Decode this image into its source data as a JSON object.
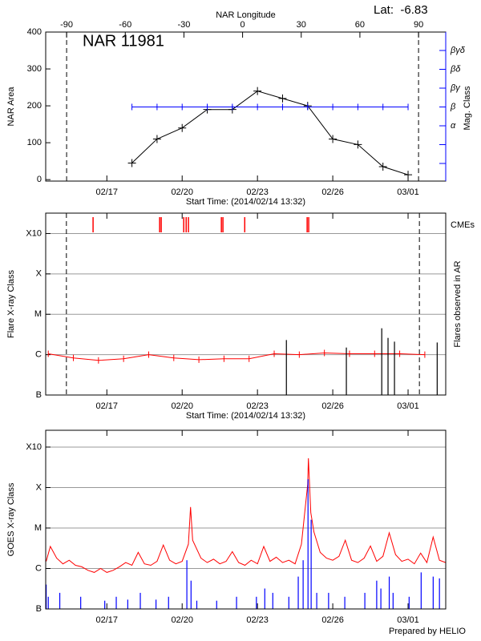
{
  "chart_data": [
    {
      "type": "line",
      "title": "NAR 11981",
      "annotation": "Lat:  -6.83",
      "x2label": "NAR Longitude",
      "x2lim": [
        -100.7,
        103.9
      ],
      "x2ticks": [
        -90,
        -60,
        -30,
        0,
        30,
        60,
        90
      ],
      "limb_longitudes": [
        -90,
        90
      ],
      "ylabel": "NAR Area",
      "ylim": [
        -4,
        400
      ],
      "yticks": [
        0,
        100,
        200,
        300,
        400
      ],
      "y2label": "Mag. Class",
      "y2categories": [
        null,
        null,
        "α",
        "β",
        "βγ",
        "βδ",
        "βγδ"
      ],
      "y2color": "#0000ff",
      "xlabel": "Start Time: (2014/02/14 13:32)",
      "xlim": [
        "2014/02/14 13:32",
        "2014/03/02 12:00"
      ],
      "xticks": [
        {
          "value": "2014/02/17 00:00",
          "label": "02/17"
        },
        {
          "value": "2014/02/20 00:00",
          "label": "02/20"
        },
        {
          "value": "2014/02/23 00:00",
          "label": "02/23"
        },
        {
          "value": "2014/02/26 00:00",
          "label": "02/26"
        },
        {
          "value": "2014/03/01 00:00",
          "label": "03/01"
        }
      ],
      "series": [
        {
          "color": "#000000",
          "marker": "plus",
          "x": [
            "2014/02/18 00:00",
            "2014/02/19 00:00",
            "2014/02/20 00:00",
            "2014/02/21 00:00",
            "2014/02/22 00:00",
            "2014/02/23 00:00",
            "2014/02/24 00:00",
            "2014/02/25 00:00",
            "2014/02/26 00:00",
            "2014/02/27 00:00",
            "2014/02/28 00:00",
            "2014/03/01 00:00"
          ],
          "values": [
            45,
            110,
            140,
            190,
            190,
            240,
            220,
            200,
            110,
            95,
            35,
            13
          ]
        },
        {
          "color": "#0000ff",
          "marker": "tick",
          "axis": "y2",
          "x": [
            "2014/02/18 00:00",
            "2014/02/19 00:00",
            "2014/02/20 00:00",
            "2014/02/21 00:00",
            "2014/02/22 00:00",
            "2014/02/23 00:00",
            "2014/02/24 00:00",
            "2014/02/25 00:00",
            "2014/02/26 00:00",
            "2014/02/27 00:00",
            "2014/02/28 00:00",
            "2014/03/01 00:00"
          ],
          "values": [
            "β",
            "β",
            "β",
            "β",
            "β",
            "β",
            "β",
            "β",
            "β",
            "β",
            "β",
            "β"
          ]
        }
      ]
    },
    {
      "type": "line",
      "log": true,
      "grid": true,
      "ylabel": "Flare X-ray Class",
      "y2label": "Flares observed in AR",
      "ylim": [
        1e-07,
        0.0032
      ],
      "yticks": [
        {
          "value": 1e-07,
          "label": "B"
        },
        {
          "value": 1e-06,
          "label": "C"
        },
        {
          "value": 1e-05,
          "label": "M"
        },
        {
          "value": 0.0001,
          "label": "X"
        },
        {
          "value": 0.001,
          "label": "X10"
        }
      ],
      "xlabel": "Start Time: (2014/02/14 13:32)",
      "xlim": [
        "2014/02/14 13:32",
        "2014/03/02 12:00"
      ],
      "xticks": [
        {
          "value": "2014/02/17 00:00",
          "label": "02/17"
        },
        {
          "value": "2014/02/20 00:00",
          "label": "02/20"
        },
        {
          "value": "2014/02/23 00:00",
          "label": "02/23"
        },
        {
          "value": "2014/02/26 00:00",
          "label": "02/26"
        },
        {
          "value": "2014/03/01 00:00",
          "label": "03/01"
        }
      ],
      "limb_times": [
        "2014/02/15 09:20",
        "2014/03/01 10:50"
      ],
      "series": [
        {
          "color": "#ff0000",
          "marker": "tick",
          "x": [
            "2014/02/14 16:00",
            "2014/02/15 16:00",
            "2014/02/16 16:00",
            "2014/02/17 16:00",
            "2014/02/18 16:00",
            "2014/02/19 16:00",
            "2014/02/20 16:00",
            "2014/02/21 16:00",
            "2014/02/22 16:00",
            "2014/02/23 16:00",
            "2014/02/24 16:00",
            "2014/02/25 16:00",
            "2014/02/26 16:00",
            "2014/02/27 16:00",
            "2014/02/28 16:00",
            "2014/03/01 16:00"
          ],
          "values": [
            1.05e-06,
            8.3e-07,
            7.2e-07,
            7.9e-07,
            1e-06,
            8.3e-07,
            7.5e-07,
            7.9e-07,
            7.9e-07,
            1.05e-06,
            1e-06,
            1.1e-06,
            1.05e-06,
            1.05e-06,
            1.05e-06,
            1e-06
          ]
        },
        {
          "color": "#000000",
          "style": "spike",
          "x": [
            "2014/02/24 03:40",
            "2014/02/26 13:00",
            "2014/02/27 22:50",
            "2014/02/28 04:50",
            "2014/02/28 11:00",
            "2014/03/02 03:50"
          ],
          "values": [
            2.3e-06,
            1.5e-06,
            4.5e-06,
            2.6e-06,
            2.1e-06,
            2e-06
          ]
        },
        {
          "name": "CMEs",
          "color": "#ff0000",
          "style": "event",
          "x": [
            "2014/02/16 10:50",
            "2014/02/19 02:30",
            "2014/02/19 04:00",
            "2014/02/20 01:30",
            "2014/02/20 03:50",
            "2014/02/20 06:00",
            "2014/02/21 13:30",
            "2014/02/21 15:00",
            "2014/02/22 11:50",
            "2014/02/24 23:30",
            "2014/02/25 01:00"
          ]
        }
      ]
    },
    {
      "type": "line",
      "log": true,
      "grid": true,
      "ylabel": "GOES X-ray Class",
      "ylim": [
        1e-07,
        0.0026
      ],
      "yticks": [
        {
          "value": 1e-07,
          "label": "B"
        },
        {
          "value": 1e-06,
          "label": "C"
        },
        {
          "value": 1e-05,
          "label": "M"
        },
        {
          "value": 0.0001,
          "label": "X"
        },
        {
          "value": 0.001,
          "label": "X10"
        }
      ],
      "xlim": [
        "2014/02/14 13:32",
        "2014/03/02 12:00"
      ],
      "xticks": [
        {
          "value": "2014/02/17 00:00",
          "label": "02/17"
        },
        {
          "value": "2014/02/20 00:00",
          "label": "02/20"
        },
        {
          "value": "2014/02/23 00:00",
          "label": "02/23"
        },
        {
          "value": "2014/02/26 00:00",
          "label": "02/26"
        },
        {
          "value": "2014/03/01 00:00",
          "label": "03/01"
        }
      ],
      "series": [
        {
          "color": "#ff0000",
          "x": [
            "2014/02/14 14:00",
            "2014/02/14 18:00",
            "2014/02/15 00:00",
            "2014/02/15 06:00",
            "2014/02/15 12:00",
            "2014/02/15 18:00",
            "2014/02/16 00:00",
            "2014/02/16 06:00",
            "2014/02/16 12:00",
            "2014/02/16 18:00",
            "2014/02/17 00:00",
            "2014/02/17 06:00",
            "2014/02/17 12:00",
            "2014/02/17 18:00",
            "2014/02/18 00:00",
            "2014/02/18 06:00",
            "2014/02/18 12:00",
            "2014/02/18 18:00",
            "2014/02/19 00:00",
            "2014/02/19 06:00",
            "2014/02/19 12:00",
            "2014/02/19 18:00",
            "2014/02/20 00:00",
            "2014/02/20 06:00",
            "2014/02/20 08:00",
            "2014/02/20 10:00",
            "2014/02/20 18:00",
            "2014/02/21 00:00",
            "2014/02/21 06:00",
            "2014/02/21 12:00",
            "2014/02/21 18:00",
            "2014/02/22 00:00",
            "2014/02/22 06:00",
            "2014/02/22 12:00",
            "2014/02/22 18:00",
            "2014/02/23 00:00",
            "2014/02/23 06:00",
            "2014/02/23 12:00",
            "2014/02/23 18:00",
            "2014/02/24 00:00",
            "2014/02/24 06:00",
            "2014/02/24 12:00",
            "2014/02/24 18:00",
            "2014/02/25 00:00",
            "2014/02/25 00:40",
            "2014/02/25 03:00",
            "2014/02/25 06:00",
            "2014/02/25 12:00",
            "2014/02/25 18:00",
            "2014/02/26 00:00",
            "2014/02/26 06:00",
            "2014/02/26 12:00",
            "2014/02/26 18:00",
            "2014/02/27 00:00",
            "2014/02/27 06:00",
            "2014/02/27 12:00",
            "2014/02/27 18:00",
            "2014/02/28 00:00",
            "2014/02/28 06:00",
            "2014/02/28 12:00",
            "2014/02/28 18:00",
            "2014/03/01 00:00",
            "2014/03/01 06:00",
            "2014/03/01 12:00",
            "2014/03/01 18:00",
            "2014/03/02 00:00",
            "2014/03/02 06:00",
            "2014/03/02 12:00"
          ],
          "values": [
            1.5e-06,
            3.5e-06,
            1.8e-06,
            1.3e-06,
            1.6e-06,
            1.2e-06,
            1.1e-06,
            9e-07,
            8e-07,
            1e-06,
            8e-07,
            9e-07,
            1.1e-06,
            1.4e-06,
            1.2e-06,
            2.5e-06,
            1.3e-06,
            1.2e-06,
            1.5e-06,
            3.8e-06,
            1.6e-06,
            1.3e-06,
            1.5e-06,
            4e-06,
            3.3e-05,
            5e-06,
            1.8e-06,
            1.4e-06,
            1.7e-06,
            1.3e-06,
            1.5e-06,
            2.6e-06,
            1.4e-06,
            1.2e-06,
            1.6e-06,
            1.3e-06,
            3.5e-06,
            1.5e-06,
            1.9e-06,
            1.4e-06,
            1.6e-06,
            1.3e-06,
            4e-06,
            0.00012,
            0.00053,
            2.4e-05,
            8e-06,
            2.5e-06,
            1.8e-06,
            1.6e-06,
            2e-06,
            5e-06,
            1.6e-06,
            1.4e-06,
            1.8e-06,
            3.6e-06,
            1.5e-06,
            2e-06,
            7.6e-06,
            2.2e-06,
            1.5e-06,
            1.7e-06,
            1.3e-06,
            2.4e-06,
            1.4e-06,
            6e-06,
            1.6e-06,
            1.4e-06
          ]
        },
        {
          "color": "#0000ff",
          "style": "spike",
          "x": [
            "2014/02/14 14:00",
            "2014/02/14 16:00",
            "2014/02/15 03:00",
            "2014/02/15 23:00",
            "2014/02/16 22:00",
            "2014/02/17 09:00",
            "2014/02/17 20:00",
            "2014/02/18 08:00",
            "2014/02/18 23:00",
            "2014/02/19 11:00",
            "2014/02/20 04:30",
            "2014/02/20 08:30",
            "2014/02/20 14:00",
            "2014/02/21 09:00",
            "2014/02/22 04:00",
            "2014/02/22 23:00",
            "2014/02/23 07:00",
            "2014/02/23 14:40",
            "2014/02/24 06:00",
            "2014/02/24 15:00",
            "2014/02/24 19:40",
            "2014/02/25 00:20",
            "2014/02/25 03:20",
            "2014/02/25 08:40",
            "2014/02/25 20:00",
            "2014/02/26 11:30",
            "2014/02/27 06:40",
            "2014/02/27 18:00",
            "2014/02/27 22:00",
            "2014/02/28 06:00",
            "2014/02/28 09:40",
            "2014/03/01 01:00",
            "2014/03/01 12:30",
            "2014/03/02 00:00",
            "2014/03/02 06:00"
          ],
          "values": [
            4e-07,
            2e-07,
            2.5e-07,
            2e-07,
            1.6e-07,
            2e-07,
            1.7e-07,
            2.5e-07,
            1.7e-07,
            2e-07,
            1.6e-06,
            5e-07,
            1.6e-07,
            1.6e-07,
            2e-07,
            2e-07,
            3.2e-07,
            2.5e-07,
            2e-07,
            6.3e-07,
            1.6e-06,
            0.00016,
            1.6e-05,
            2.5e-07,
            2.5e-07,
            2e-07,
            2.5e-07,
            5e-07,
            3.2e-07,
            6.3e-07,
            2.5e-07,
            2e-07,
            8e-07,
            6.3e-07,
            5.7e-07
          ]
        }
      ]
    }
  ],
  "footer": "Prepared by HELIO"
}
